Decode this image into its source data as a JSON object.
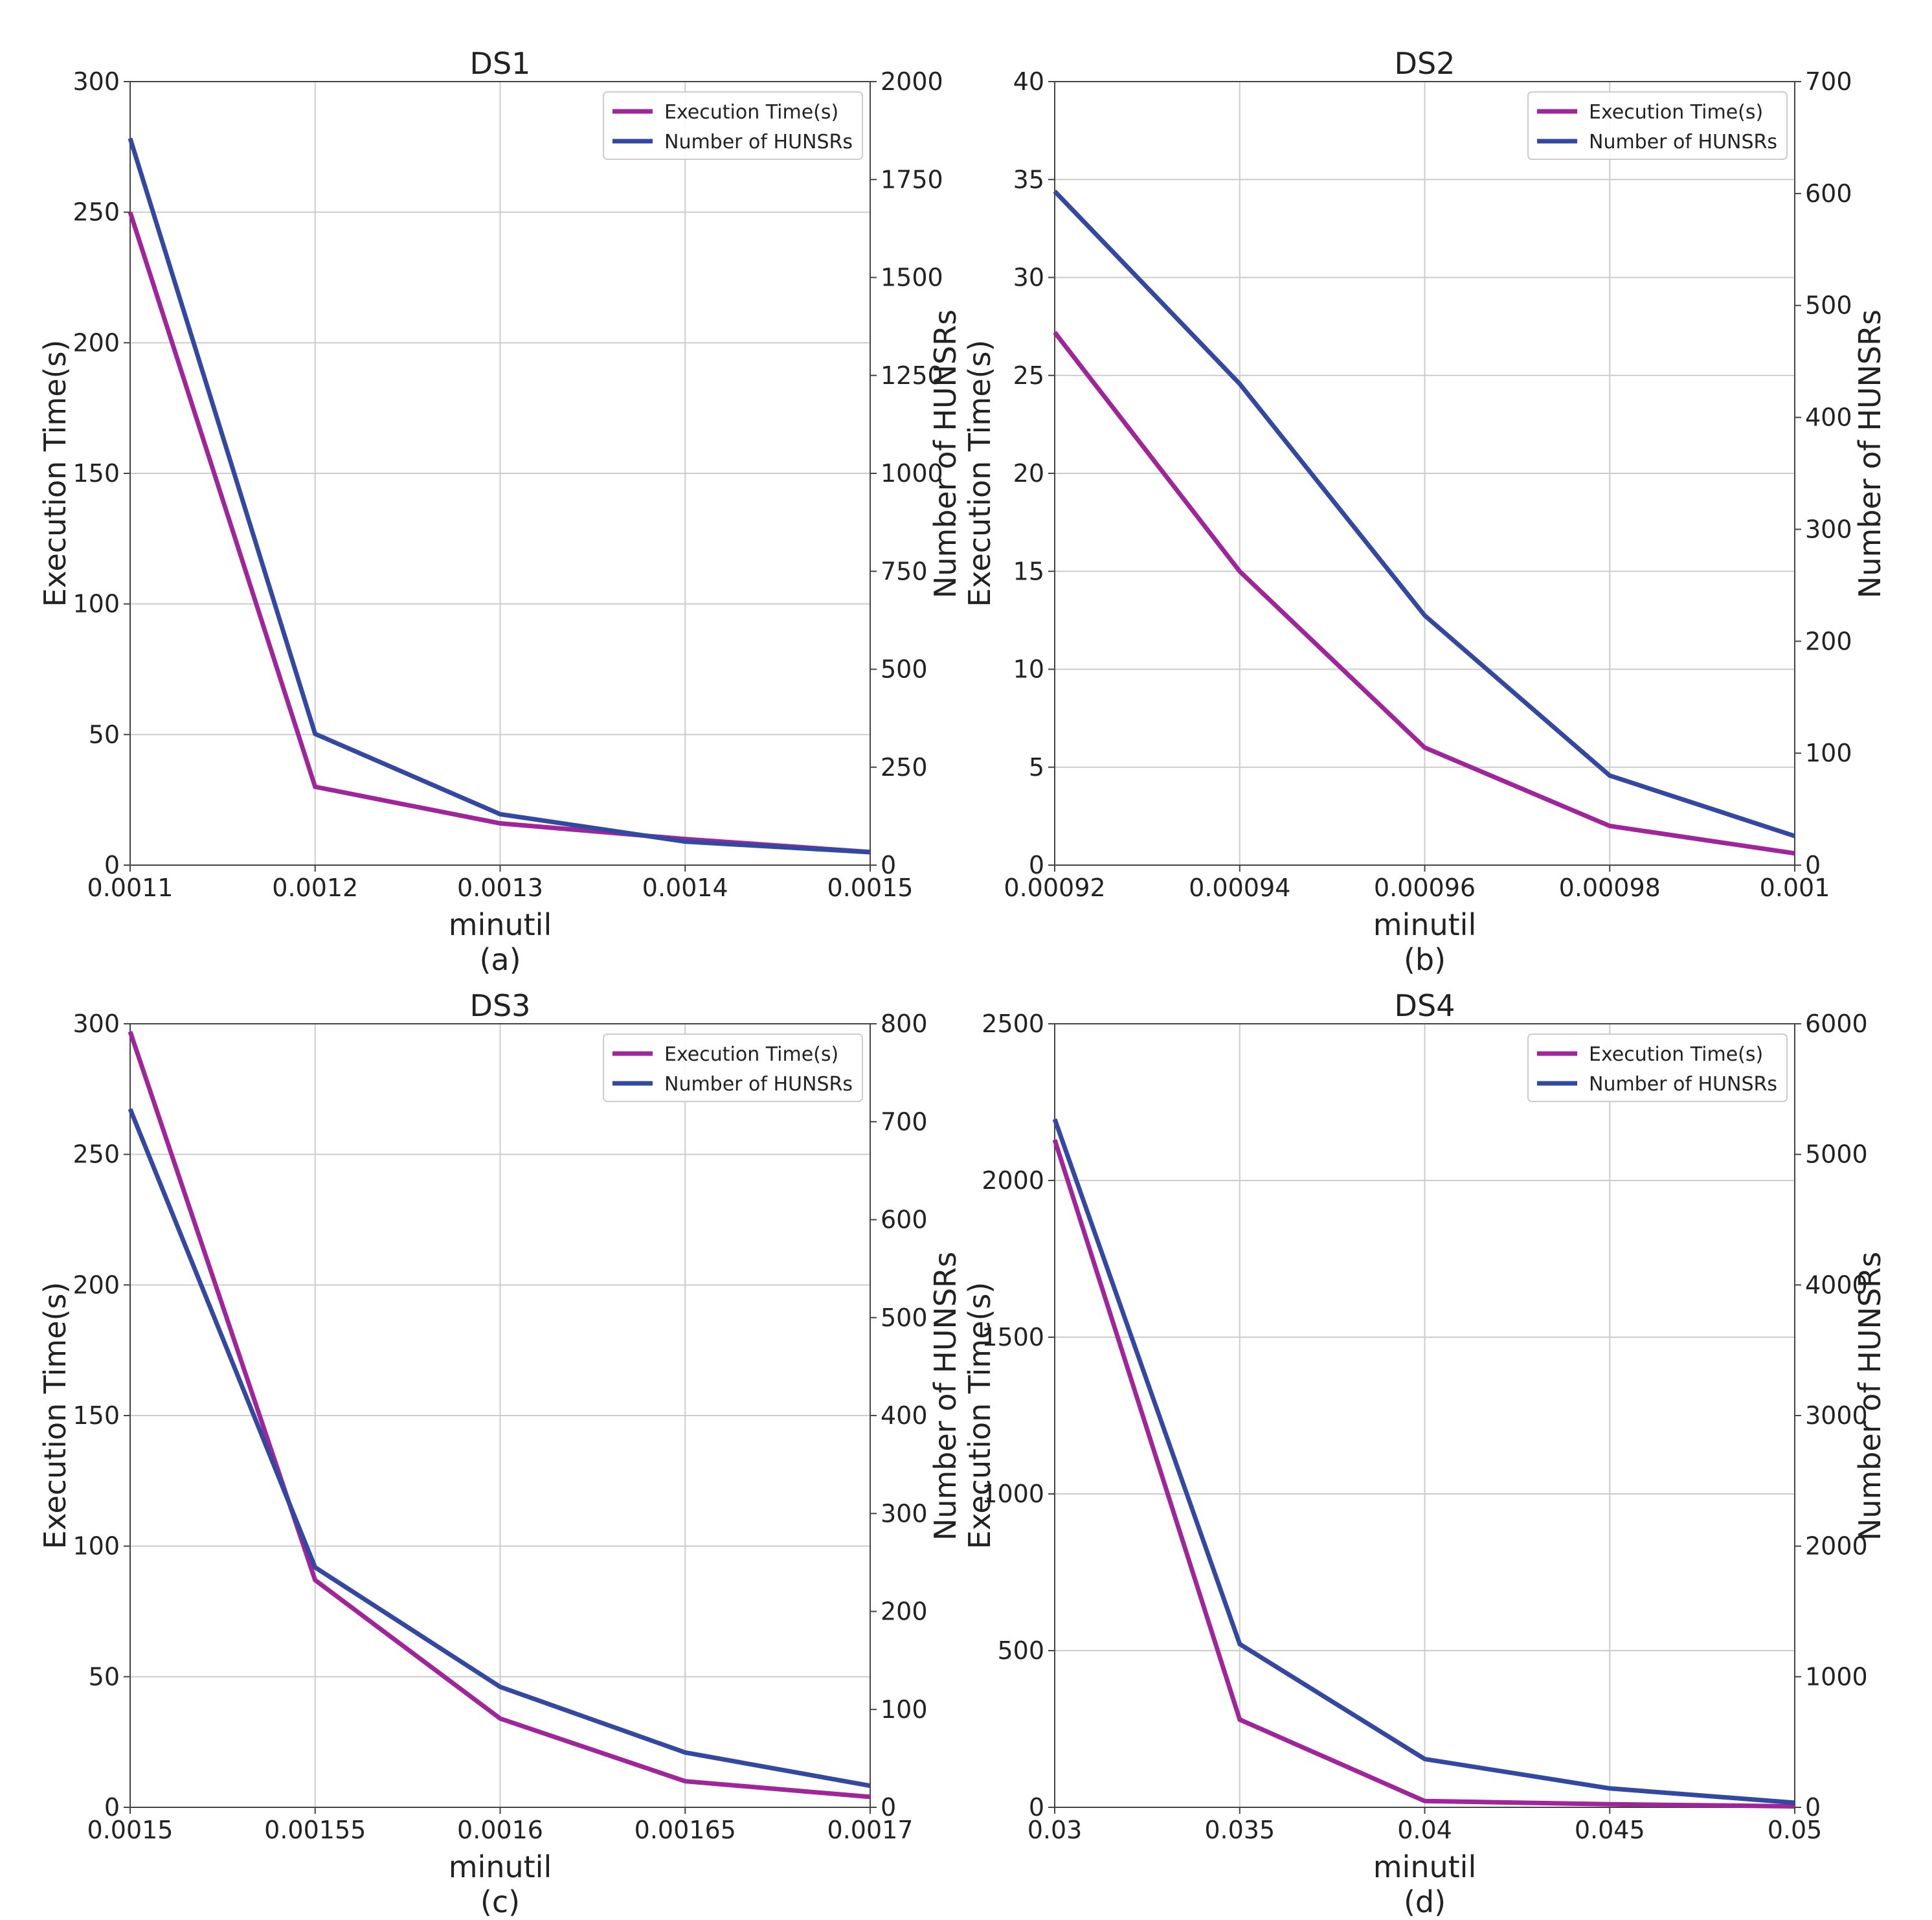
{
  "chart_data": [
    {
      "type": "line",
      "title": "DS1",
      "caption": "(a)",
      "xlabel": "minutil",
      "ylabel": "Execution Time(s)",
      "y2label": "Number of HUNSRs",
      "x": [
        0.0011,
        0.0012,
        0.0013,
        0.0014,
        0.0015
      ],
      "xticks": [
        "0.0011",
        "0.0012",
        "0.0013",
        "0.0014",
        "0.0015"
      ],
      "xlim": [
        0.0011,
        0.0015
      ],
      "ylim": [
        0,
        300
      ],
      "yticks": [
        0,
        50,
        100,
        150,
        200,
        250,
        300
      ],
      "y2lim": [
        0,
        2000
      ],
      "y2ticks": [
        0,
        250,
        500,
        750,
        1000,
        1250,
        1500,
        1750,
        2000
      ],
      "legend_position": "top-right",
      "grid": true,
      "series": [
        {
          "name": "Execution Time(s)",
          "axis": "left",
          "color": "#a0249a",
          "values": [
            250,
            30,
            16,
            10,
            5
          ]
        },
        {
          "name": "Number of HUNSRs",
          "axis": "right",
          "color": "#3348a0",
          "values": [
            1855,
            335,
            130,
            60,
            33
          ]
        }
      ]
    },
    {
      "type": "line",
      "title": "DS2",
      "caption": "(b)",
      "xlabel": "minutil",
      "ylabel": "Execution Time(s)",
      "y2label": "Number of HUNSRs",
      "x": [
        0.00092,
        0.00094,
        0.00096,
        0.00098,
        0.001
      ],
      "xticks": [
        "0.00092",
        "0.00094",
        "0.00096",
        "0.00098",
        "0.001"
      ],
      "xlim": [
        0.00092,
        0.001
      ],
      "ylim": [
        0,
        40
      ],
      "yticks": [
        0,
        5,
        10,
        15,
        20,
        25,
        30,
        35,
        40
      ],
      "y2lim": [
        0,
        700
      ],
      "y2ticks": [
        0,
        100,
        200,
        300,
        400,
        500,
        600,
        700
      ],
      "legend_position": "top-right",
      "grid": true,
      "series": [
        {
          "name": "Execution Time(s)",
          "axis": "left",
          "color": "#a0249a",
          "values": [
            27.2,
            15,
            6,
            2,
            0.6
          ]
        },
        {
          "name": "Number of HUNSRs",
          "axis": "right",
          "color": "#3348a0",
          "values": [
            602,
            430,
            223,
            80,
            26
          ]
        }
      ]
    },
    {
      "type": "line",
      "title": "DS3",
      "caption": "(c)",
      "xlabel": "minutil",
      "ylabel": "Execution Time(s)",
      "y2label": "Number of HUNSRs",
      "x": [
        0.0015,
        0.00155,
        0.0016,
        0.00165,
        0.0017
      ],
      "xticks": [
        "0.0015",
        "0.00155",
        "0.0016",
        "0.00165",
        "0.0017"
      ],
      "xlim": [
        0.0015,
        0.0017
      ],
      "ylim": [
        0,
        300
      ],
      "yticks": [
        0,
        50,
        100,
        150,
        200,
        250,
        300
      ],
      "y2lim": [
        0,
        800
      ],
      "y2ticks": [
        0,
        100,
        200,
        300,
        400,
        500,
        600,
        700,
        800
      ],
      "legend_position": "top-right",
      "grid": true,
      "series": [
        {
          "name": "Execution Time(s)",
          "axis": "left",
          "color": "#a0249a",
          "values": [
            297,
            87,
            34,
            10,
            4
          ]
        },
        {
          "name": "Number of HUNSRs",
          "axis": "right",
          "color": "#3348a0",
          "values": [
            713,
            245,
            123,
            56,
            22
          ]
        }
      ]
    },
    {
      "type": "line",
      "title": "DS4",
      "caption": "(d)",
      "xlabel": "minutil",
      "ylabel": "Execution Time(s)",
      "y2label": "Number of HUNSRs",
      "x": [
        0.03,
        0.035,
        0.04,
        0.045,
        0.05
      ],
      "xticks": [
        "0.03",
        "0.035",
        "0.04",
        "0.045",
        "0.05"
      ],
      "xlim": [
        0.03,
        0.05
      ],
      "ylim": [
        0,
        2500
      ],
      "yticks": [
        0,
        500,
        1000,
        1500,
        2000,
        2500
      ],
      "y2lim": [
        0,
        6000
      ],
      "y2ticks": [
        0,
        1000,
        2000,
        3000,
        4000,
        5000,
        6000
      ],
      "legend_position": "top-right",
      "grid": true,
      "series": [
        {
          "name": "Execution Time(s)",
          "axis": "left",
          "color": "#a0249a",
          "values": [
            2130,
            280,
            20,
            10,
            3
          ]
        },
        {
          "name": "Number of HUNSRs",
          "axis": "right",
          "color": "#3348a0",
          "values": [
            5270,
            1250,
            370,
            145,
            35
          ]
        }
      ]
    }
  ]
}
